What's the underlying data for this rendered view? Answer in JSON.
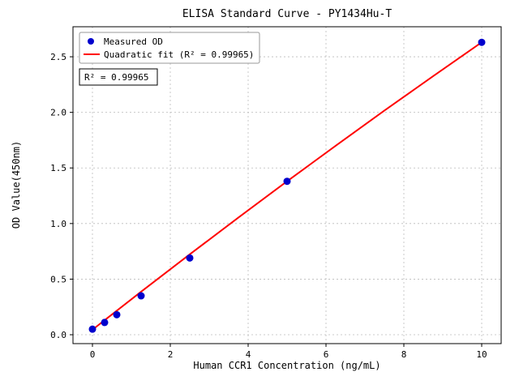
{
  "chart_data": {
    "type": "scatter",
    "title": "ELISA Standard Curve - PY1434Hu-T",
    "xlabel": "Human CCR1 Concentration (ng/mL)",
    "ylabel": "OD Value(450nm)",
    "xlim": [
      -0.5,
      10.5
    ],
    "ylim": [
      -0.08,
      2.77
    ],
    "xticks": [
      0,
      2,
      4,
      6,
      8,
      10
    ],
    "xtick_labels": [
      "0",
      "2",
      "4",
      "6",
      "8",
      "10"
    ],
    "yticks": [
      0.0,
      0.5,
      1.0,
      1.5,
      2.0,
      2.5
    ],
    "ytick_labels": [
      "0.0",
      "0.5",
      "1.0",
      "1.5",
      "2.0",
      "2.5"
    ],
    "grid": true,
    "series": [
      {
        "name": "Measured OD",
        "kind": "scatter",
        "color": "#0000cd",
        "x": [
          0,
          0.3125,
          0.625,
          1.25,
          2.5,
          5,
          10
        ],
        "y": [
          0.05,
          0.11,
          0.18,
          0.35,
          0.69,
          1.38,
          2.63
        ]
      },
      {
        "name": "Quadratic fit (R² = 0.99965)",
        "kind": "line",
        "color": "#ff0000",
        "x": [
          0,
          1.25,
          2.5,
          3.75,
          5,
          6.25,
          7.5,
          8.75,
          10
        ],
        "y": [
          0.045,
          0.387,
          0.723,
          1.054,
          1.38,
          1.7,
          2.016,
          2.325,
          2.63
        ]
      }
    ],
    "legend": {
      "position": "upper-left",
      "entries": [
        "Measured OD",
        "Quadratic fit (R² = 0.99965)"
      ]
    },
    "annotation": "R² = 0.99965",
    "colors": {
      "points": "#0000cd",
      "fit_line": "#ff0000",
      "grid": "#bbbbbb",
      "frame": "#000000"
    }
  }
}
